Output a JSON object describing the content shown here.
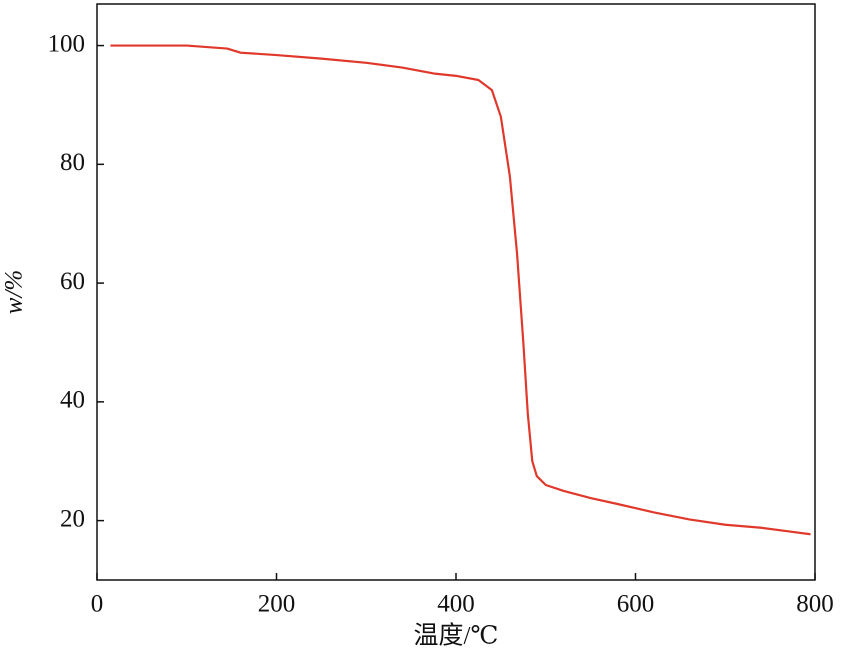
{
  "chart_data": {
    "type": "line",
    "x_label": "温度/℃",
    "y_label": "w/%",
    "x": [
      15,
      100,
      145,
      160,
      200,
      250,
      300,
      340,
      375,
      400,
      425,
      440,
      450,
      460,
      468,
      475,
      480,
      485,
      490,
      500,
      520,
      550,
      580,
      620,
      660,
      700,
      740,
      770,
      795
    ],
    "values": [
      100,
      100,
      99.5,
      98.8,
      98.4,
      97.8,
      97.1,
      96.3,
      95.3,
      94.9,
      94.2,
      92.5,
      88,
      78,
      65,
      50,
      38,
      30,
      27.5,
      26,
      25,
      23.8,
      22.8,
      21.4,
      20.2,
      19.3,
      18.8,
      18.2,
      17.7
    ],
    "color": "#e0392b",
    "xlim": [
      0,
      800
    ],
    "xticks": [
      0,
      200,
      400,
      600,
      800
    ],
    "ylim": [
      10,
      107
    ],
    "yticks": [
      20,
      40,
      60,
      80,
      100
    ]
  }
}
